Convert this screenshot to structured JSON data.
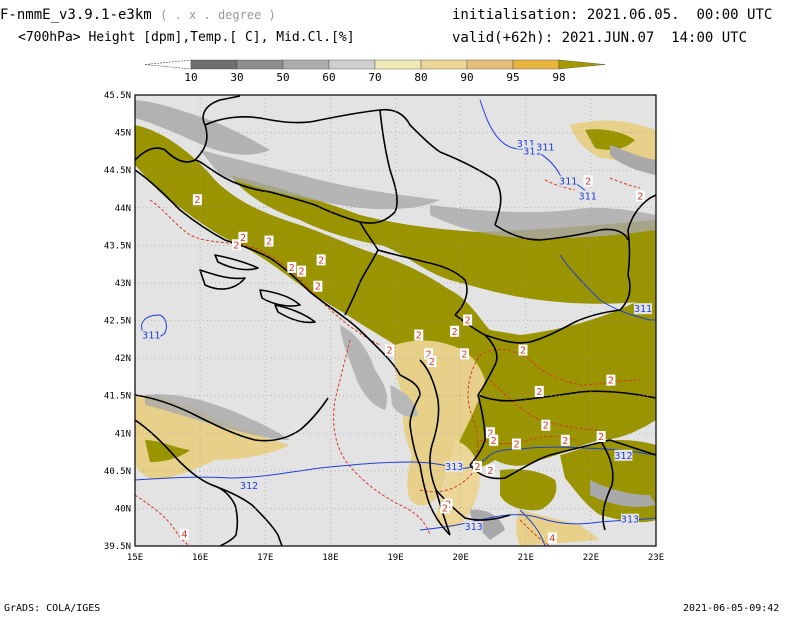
{
  "header": {
    "model": "F-nmmE_v3.9.1-e3km",
    "model_unit": "( . x . degree )",
    "variables": "<700hPa> Height [dpm],Temp.[ C], Mid.Cl.[%]",
    "init_label": "initialisation:",
    "init_value": "2021.06.05.  00:00 UTC",
    "valid_label": "valid(+62h):",
    "valid_value": "2021.JUN.07  14:00 UTC"
  },
  "colorbar": {
    "labels": [
      "10",
      "30",
      "50",
      "60",
      "70",
      "80",
      "90",
      "95",
      "98"
    ],
    "colors": [
      "#ffffff",
      "#6e6e6e",
      "#8e8e8e",
      "#adadad",
      "#cfcfcf",
      "#eee9b5",
      "#ebd698",
      "#e6c07a",
      "#e8b53c",
      "#a49a00"
    ]
  },
  "map": {
    "lat_labels": [
      "45.5N",
      "45N",
      "44.5N",
      "44N",
      "43.5N",
      "43N",
      "42.5N",
      "42N",
      "41.5N",
      "41N",
      "40.5N",
      "40N",
      "39.5N"
    ],
    "lon_labels": [
      "15E",
      "16E",
      "17E",
      "18E",
      "19E",
      "20E",
      "21E",
      "22E",
      "23E"
    ],
    "colors": {
      "background": "#e3e3e3",
      "cloud_high": "#999400",
      "cloud_mid": "#e7d18a",
      "cloud_low": "#a9a9a9",
      "height_contour": "#1f3fd6",
      "temp_contour": "#d43a2a",
      "border": "#000000"
    },
    "height_labels": [
      {
        "text": "311",
        "lon": 21.0,
        "lat": 44.85
      },
      {
        "text": "311",
        "lon": 21.1,
        "lat": 44.75
      },
      {
        "text": "311",
        "lon": 21.3,
        "lat": 44.8
      },
      {
        "text": "311",
        "lon": 21.65,
        "lat": 44.35
      },
      {
        "text": "311",
        "lon": 21.95,
        "lat": 44.15
      },
      {
        "text": "311",
        "lon": 15.25,
        "lat": 42.3
      },
      {
        "text": "311",
        "lon": 22.8,
        "lat": 42.65
      },
      {
        "text": "312",
        "lon": 22.5,
        "lat": 40.7
      },
      {
        "text": "312",
        "lon": 16.75,
        "lat": 40.3
      },
      {
        "text": "313",
        "lon": 19.9,
        "lat": 40.55
      },
      {
        "text": "313",
        "lon": 20.2,
        "lat": 39.75
      },
      {
        "text": "313",
        "lon": 22.6,
        "lat": 39.85
      }
    ],
    "temp_labels": [
      {
        "text": "2",
        "lon": 15.95,
        "lat": 44.1
      },
      {
        "text": "2",
        "lon": 16.55,
        "lat": 43.5
      },
      {
        "text": "2",
        "lon": 16.65,
        "lat": 43.6
      },
      {
        "text": "2",
        "lon": 17.05,
        "lat": 43.55
      },
      {
        "text": "2",
        "lon": 17.4,
        "lat": 43.2
      },
      {
        "text": "2",
        "lon": 17.55,
        "lat": 43.15
      },
      {
        "text": "2",
        "lon": 17.85,
        "lat": 43.3
      },
      {
        "text": "2",
        "lon": 17.8,
        "lat": 42.95
      },
      {
        "text": "2",
        "lon": 19.35,
        "lat": 42.3
      },
      {
        "text": "2",
        "lon": 18.9,
        "lat": 42.1
      },
      {
        "text": "2",
        "lon": 19.5,
        "lat": 42.05
      },
      {
        "text": "2",
        "lon": 19.55,
        "lat": 41.95
      },
      {
        "text": "2",
        "lon": 19.9,
        "lat": 42.35
      },
      {
        "text": "2",
        "lon": 20.1,
        "lat": 42.5
      },
      {
        "text": "2",
        "lon": 20.05,
        "lat": 42.05
      },
      {
        "text": "2",
        "lon": 20.95,
        "lat": 42.1
      },
      {
        "text": "2",
        "lon": 21.2,
        "lat": 41.55
      },
      {
        "text": "2",
        "lon": 22.3,
        "lat": 41.7
      },
      {
        "text": "2",
        "lon": 20.45,
        "lat": 41.0
      },
      {
        "text": "2",
        "lon": 20.5,
        "lat": 40.9
      },
      {
        "text": "2",
        "lon": 20.85,
        "lat": 40.85
      },
      {
        "text": "2",
        "lon": 21.3,
        "lat": 41.1
      },
      {
        "text": "2",
        "lon": 21.6,
        "lat": 40.9
      },
      {
        "text": "2",
        "lon": 22.15,
        "lat": 40.95
      },
      {
        "text": "2",
        "lon": 20.25,
        "lat": 40.55
      },
      {
        "text": "2",
        "lon": 20.45,
        "lat": 40.5
      },
      {
        "text": "2",
        "lon": 19.8,
        "lat": 40.05
      },
      {
        "text": "2",
        "lon": 19.75,
        "lat": 40.0
      },
      {
        "text": "4",
        "lon": 21.4,
        "lat": 39.6
      },
      {
        "text": "4",
        "lon": 15.75,
        "lat": 39.65
      },
      {
        "text": "2",
        "lon": 21.95,
        "lat": 44.35
      },
      {
        "text": "2",
        "lon": 22.75,
        "lat": 44.15
      }
    ]
  },
  "footer": {
    "left": "GrADS: COLA/IGES",
    "right": "2021-06-05-09:42"
  }
}
